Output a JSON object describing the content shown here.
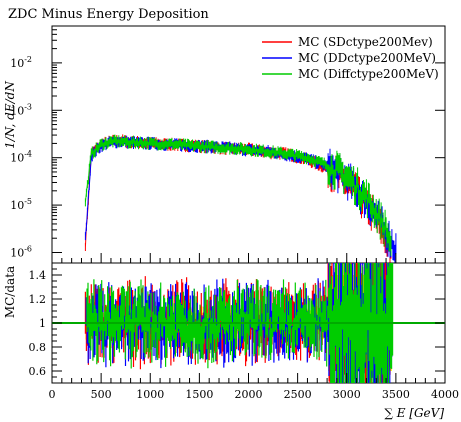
{
  "chart_data": {
    "title": "ZDC Minus Energy Deposition",
    "type": "line",
    "top_panel": {
      "ylabel": "1/N, dE/dN",
      "yscale": "log",
      "ylim": [
        6e-07,
        0.06
      ],
      "ytick_labels": [
        "10^{-6}",
        "10^{-5}",
        "10^{-4}",
        "10^{-3}",
        "10^{-2}"
      ],
      "legend_position": "top-right",
      "series": [
        {
          "name": "MC (SDctype200Mev)",
          "color": "#ff0000",
          "x": [
            340,
            400,
            500,
            600,
            700,
            800,
            900,
            1000,
            1200,
            1400,
            1600,
            1800,
            2000,
            2200,
            2400,
            2600,
            2800,
            3000,
            3200,
            3300,
            3400,
            3450
          ],
          "y": [
            1.5e-06,
            0.00012,
            0.00019,
            0.00022,
            0.00023,
            0.00021,
            0.00021,
            0.0002,
            0.00019,
            0.00018,
            0.00017,
            0.000155,
            0.00015,
            0.00013,
            0.00012,
            9e-05,
            6e-05,
            3e-05,
            1e-05,
            5e-06,
            2e-06,
            1e-06
          ]
        },
        {
          "name": "MC (DDctype200MeV)",
          "color": "#0000ff",
          "x": [
            340,
            400,
            500,
            600,
            700,
            800,
            900,
            1000,
            1200,
            1400,
            1600,
            1800,
            2000,
            2200,
            2400,
            2600,
            2800,
            3000,
            3200,
            3300,
            3400,
            3500
          ],
          "y": [
            2e-06,
            0.00011,
            0.00018,
            0.00021,
            0.00022,
            0.00021,
            0.0002,
            0.0002,
            0.00019,
            0.00018,
            0.00017,
            0.00016,
            0.000145,
            0.000135,
            0.000115,
            9.5e-05,
            6.5e-05,
            3.5e-05,
            1.2e-05,
            6e-06,
            2.5e-06,
            1.2e-06
          ]
        },
        {
          "name": "MC (Diffctype200MeV)",
          "color": "#00cc00",
          "x": [
            340,
            400,
            500,
            600,
            700,
            800,
            900,
            1000,
            1200,
            1400,
            1600,
            1800,
            2000,
            2200,
            2400,
            2600,
            2800,
            3000,
            3200,
            3300,
            3400,
            3450
          ],
          "y": [
            1.2e-05,
            0.00012,
            0.00019,
            0.00022,
            0.00022,
            0.00021,
            0.00021,
            0.0002,
            0.000195,
            0.00018,
            0.00017,
            0.00016,
            0.00015,
            0.000135,
            0.00012,
            0.0001,
            7e-05,
            4e-05,
            1.5e-05,
            7e-06,
            3e-06,
            1.5e-06
          ]
        }
      ]
    },
    "bottom_panel": {
      "ylabel": "MC/data",
      "ylim": [
        0.5,
        1.5
      ],
      "yticks": [
        0.6,
        0.8,
        1,
        1.2,
        1.4
      ],
      "ytick_labels": [
        "0.6",
        "0.8",
        "1",
        "1.2",
        "1.4"
      ],
      "reference_line": 1,
      "band_color": "#ffff00",
      "band_halfwidth": 0.1
    },
    "xlabel": "∑ E [GeV]",
    "xlim": [
      0,
      4000
    ],
    "xticks": [
      0,
      500,
      1000,
      1500,
      2000,
      2500,
      3000,
      3500,
      4000
    ],
    "xtick_labels": [
      "0",
      "500",
      "1000",
      "1500",
      "2000",
      "2500",
      "3000",
      "3500",
      "4000"
    ]
  }
}
